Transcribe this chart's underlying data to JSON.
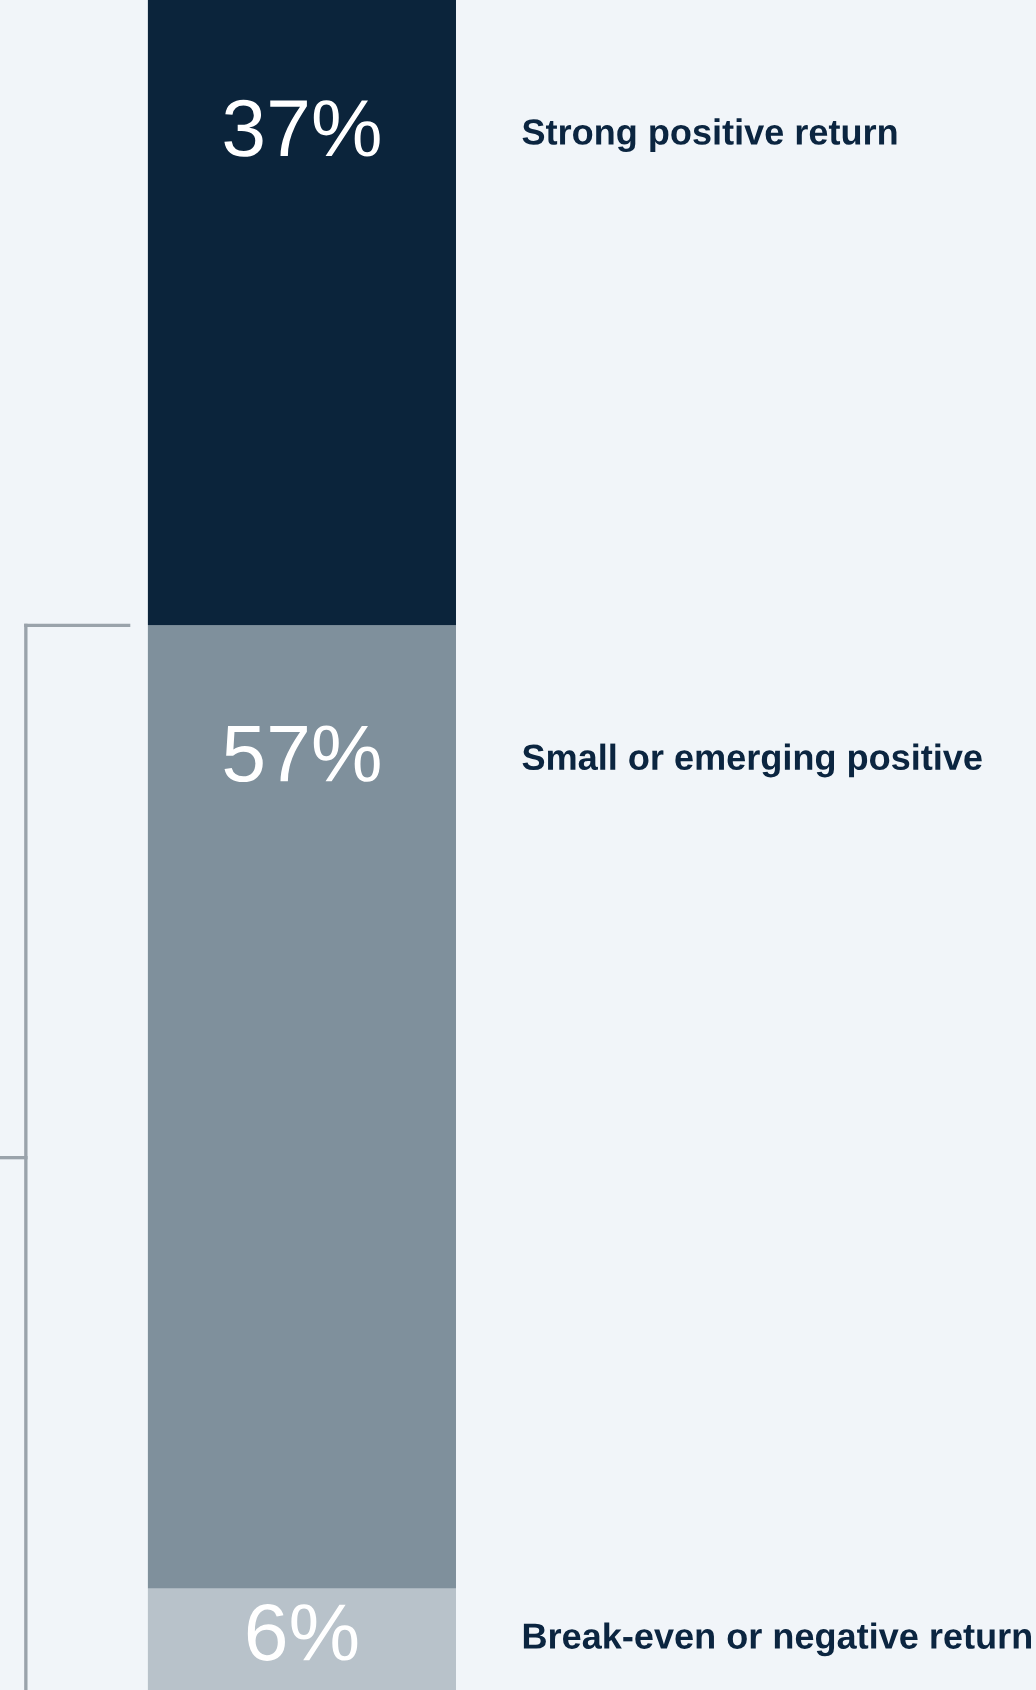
{
  "chart_data": {
    "type": "bar",
    "stacked": true,
    "categories": [
      null
    ],
    "legend": false,
    "series": [
      {
        "name": "Break-even or negative return",
        "color": "#b8c2ca",
        "values": [
          6
        ],
        "value_labels": [
          "6%"
        ]
      },
      {
        "name": "Small or emerging positive",
        "color": "#7f909c",
        "values": [
          57
        ],
        "value_labels": [
          "57%"
        ]
      },
      {
        "name": "Strong positive return",
        "color": "#0b243b",
        "values": [
          37
        ],
        "value_labels": [
          "37%"
        ]
      }
    ]
  }
}
